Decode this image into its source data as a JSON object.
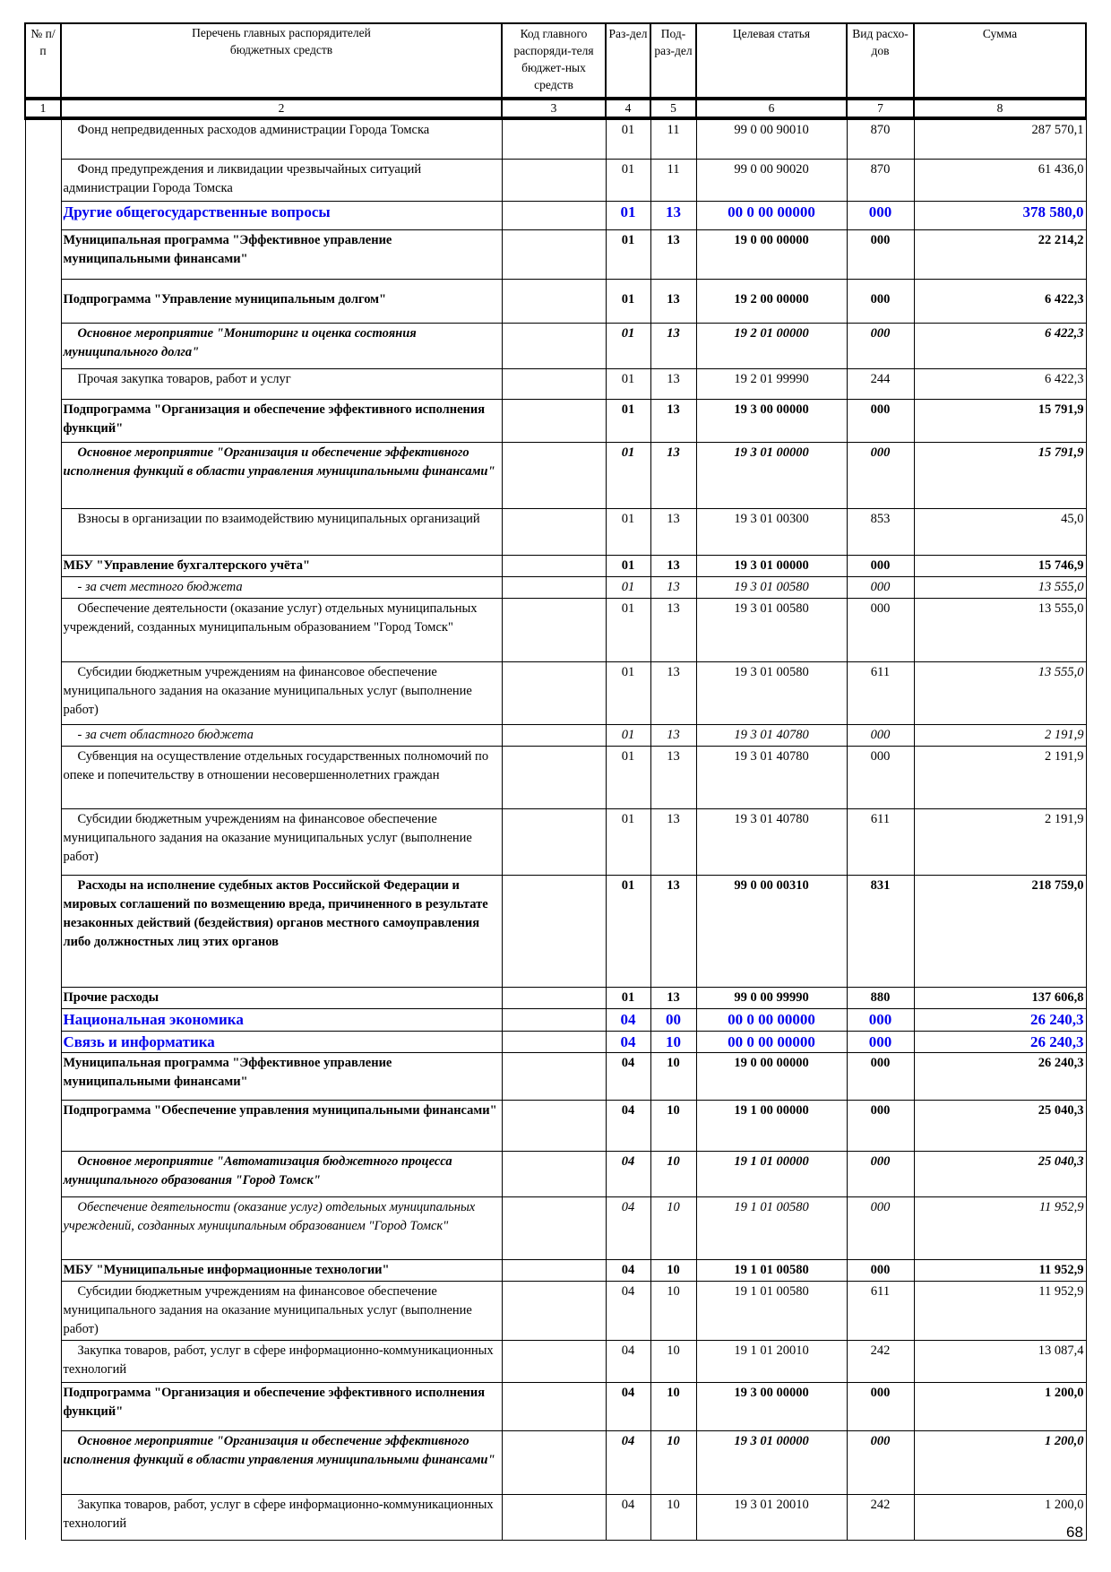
{
  "header": {
    "num": "№ п/п",
    "name": "Перечень главных распорядителей бюджетных средств",
    "code": "Код главного распоряди-теля бюджет-ных средств",
    "razdel": "Раз-дел",
    "podrazdel": "Под-раз-дел",
    "target": "Целевая статья",
    "vid": "Вид расхо-дов",
    "sum": "Сумма"
  },
  "column_numbers": [
    "1",
    "2",
    "3",
    "4",
    "5",
    "6",
    "7",
    "8"
  ],
  "rows": [
    {
      "style": "n",
      "ind": true,
      "name": "Фонд непредвиденных расходов администрации Города Томска",
      "r": "01",
      "p": "11",
      "t": "99 0 00 90010",
      "v": "870",
      "s": "287 570,1"
    },
    {
      "style": "n",
      "ind": true,
      "name": "Фонд предупреждения и ликвидации чрезвычайных ситуаций администрации Города Томска",
      "r": "01",
      "p": "11",
      "t": "99 0 00 90020",
      "v": "870",
      "s": "61 436,0"
    },
    {
      "style": "blue",
      "name": "Другие общегосударственные вопросы",
      "r": "01",
      "p": "13",
      "t": "00 0 00 00000",
      "v": "000",
      "s": "378 580,0"
    },
    {
      "style": "b",
      "name": "Муниципальная программа \"Эффективное управление муниципальными финансами\"",
      "r": "01",
      "p": "13",
      "t": "19 0 00 00000",
      "v": "000",
      "s": "22 214,2"
    },
    {
      "style": "b",
      "name": "Подпрограмма \"Управление муниципальным долгом\"",
      "r": "01",
      "p": "13",
      "t": "19 2 00 00000",
      "v": "000",
      "s": "6 422,3",
      "vpad": true
    },
    {
      "style": "bi",
      "ind": true,
      "name": "Основное мероприятие \"Мониторинг и оценка состояния муниципального долга\"",
      "r": "01",
      "p": "13",
      "t": "19 2 01 00000",
      "v": "000",
      "s": "6 422,3"
    },
    {
      "style": "n",
      "ind": true,
      "name": "Прочая закупка товаров, работ и услуг",
      "r": "01",
      "p": "13",
      "t": "19 2 01 99990",
      "v": "244",
      "s": "6 422,3"
    },
    {
      "style": "b",
      "name": "Подпрограмма \"Организация и обеспечение эффективного исполнения функций\"",
      "r": "01",
      "p": "13",
      "t": "19 3 00 00000",
      "v": "000",
      "s": "15 791,9"
    },
    {
      "style": "bi",
      "ind": true,
      "name": "Основное мероприятие \"Организация и обеспечение эффективного исполнения функций в области управления муниципальными финансами\"",
      "r": "01",
      "p": "13",
      "t": "19 3 01 00000",
      "v": "000",
      "s": "15 791,9"
    },
    {
      "style": "n",
      "ind": true,
      "name": "Взносы в организации по взаимодействию муниципальных организаций",
      "r": "01",
      "p": "13",
      "t": "19 3 01 00300",
      "v": "853",
      "s": "45,0"
    },
    {
      "style": "b",
      "name": "МБУ \"Управление бухгалтерского учёта\"",
      "r": "01",
      "p": "13",
      "t": "19 3 01 00000",
      "v": "000",
      "s": "15 746,9"
    },
    {
      "style": "i",
      "ind": true,
      "name": "- за счет местного бюджета",
      "r": "01",
      "p": "13",
      "t": "19 3 01 00580",
      "v": "000",
      "s": "13 555,0"
    },
    {
      "style": "n",
      "ind": true,
      "name": "Обеспечение деятельности (оказание услуг) отдельных муниципальных учреждений, созданных муниципальным образованием \"Город Томск\"",
      "r": "01",
      "p": "13",
      "t": "19 3 01 00580",
      "v": "000",
      "s": "13 555,0"
    },
    {
      "style": "n",
      "ind": true,
      "sumItalic": true,
      "name": "Субсидии бюджетным учреждениям на финансовое обеспечение муниципального задания на оказание муниципальных услуг (выполнение работ)",
      "r": "01",
      "p": "13",
      "t": "19 3 01 00580",
      "v": "611",
      "s": "13 555,0"
    },
    {
      "style": "i",
      "ind": true,
      "name": "- за счет областного бюджета",
      "r": "01",
      "p": "13",
      "t": "19 3 01 40780",
      "v": "000",
      "s": "2 191,9"
    },
    {
      "style": "n",
      "ind": true,
      "name": "Субвенция на осуществление отдельных государственных полномочий по опеке и попечительству в  отношении несовершеннолетних граждан",
      "r": "01",
      "p": "13",
      "t": "19 3 01 40780",
      "v": "000",
      "s": "2 191,9"
    },
    {
      "style": "n",
      "ind": true,
      "name": "Субсидии бюджетным учреждениям на финансовое обеспечение муниципального задания на оказание муниципальных услуг (выполнение работ)",
      "r": "01",
      "p": "13",
      "t": "19 3 01 40780",
      "v": "611",
      "s": "2 191,9"
    },
    {
      "style": "b",
      "ind": true,
      "name": "Расходы на исполнение судебных актов Российской Федерации и мировых соглашений по возмещению вреда, причиненного в результате незаконных действий (бездействия) органов местного самоуправления либо должностных лиц этих органов",
      "r": "01",
      "p": "13",
      "t": "99 0 00 00310",
      "v": "831",
      "s": "218 759,0"
    },
    {
      "style": "b",
      "name": "Прочие расходы",
      "r": "01",
      "p": "13",
      "t": "99 0 00 99990",
      "v": "880",
      "s": "137 606,8"
    },
    {
      "style": "blue",
      "name": "Национальная экономика",
      "r": "04",
      "p": "00",
      "t": "00 0 00 00000",
      "v": "000",
      "s": "26 240,3"
    },
    {
      "style": "blue",
      "name": "Связь и информатика",
      "r": "04",
      "p": "10",
      "t": "00 0 00 00000",
      "v": "000",
      "s": "26 240,3"
    },
    {
      "style": "b",
      "name": "Муниципальная программа \"Эффективное управление муниципальными финансами\"",
      "r": "04",
      "p": "10",
      "t": "19 0 00 00000",
      "v": "000",
      "s": "26 240,3"
    },
    {
      "style": "b",
      "name": "Подпрограмма \"Обеспечение управления муниципальными финансами\"",
      "r": "04",
      "p": "10",
      "t": "19 1 00 00000",
      "v": "000",
      "s": "25 040,3"
    },
    {
      "style": "bi",
      "ind": true,
      "name": "Основное мероприятие \"Автоматизация бюджетного процесса муниципального образования \"Город Томск\"",
      "r": "04",
      "p": "10",
      "t": "19 1 01 00000",
      "v": "000",
      "s": "25 040,3"
    },
    {
      "style": "i",
      "ind": true,
      "name": "Обеспечение деятельности (оказание услуг) отдельных муниципальных учреждений, созданных муниципальным образованием \"Город Томск\"",
      "r": "04",
      "p": "10",
      "t": "19 1 01 00580",
      "v": "000",
      "s": "11 952,9"
    },
    {
      "style": "b",
      "name": "МБУ \"Муниципальные информационные технологии\"",
      "r": "04",
      "p": "10",
      "t": "19 1 01 00580",
      "v": "000",
      "s": "11 952,9"
    },
    {
      "style": "n",
      "ind": true,
      "name": "Субсидии бюджетным учреждениям на финансовое обеспечение муниципального задания на оказание муниципальных услуг (выполнение работ)",
      "r": "04",
      "p": "10",
      "t": "19 1 01 00580",
      "v": "611",
      "s": "11 952,9"
    },
    {
      "style": "n",
      "ind": true,
      "name": "Закупка товаров, работ, услуг в сфере информационно-коммуникационных технологий",
      "r": "04",
      "p": "10",
      "t": "19 1 01 20010",
      "v": "242",
      "s": "13 087,4"
    },
    {
      "style": "b",
      "name": "Подпрограмма \"Организация и обеспечение эффективного исполнения функций\"",
      "r": "04",
      "p": "10",
      "t": "19 3 00 00000",
      "v": "000",
      "s": "1 200,0"
    },
    {
      "style": "bi",
      "ind": true,
      "name": "Основное мероприятие \"Организация и обеспечение эффективного исполнения функций в области управления муниципальными финансами\"",
      "r": "04",
      "p": "10",
      "t": "19 3 01 00000",
      "v": "000",
      "s": "1 200,0"
    },
    {
      "style": "n",
      "ind": true,
      "name": "Закупка товаров, работ, услуг в сфере информационно-коммуникационных технологий",
      "r": "04",
      "p": "10",
      "t": "19 3 01 20010",
      "v": "242",
      "s": "1 200,0"
    }
  ],
  "page_number": "68"
}
